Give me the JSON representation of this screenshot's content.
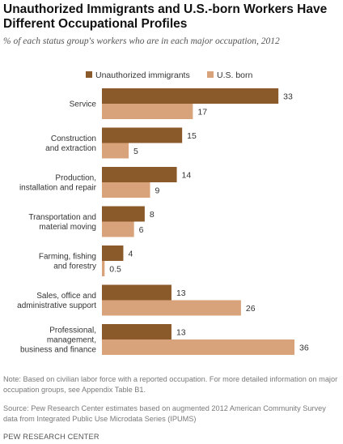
{
  "header": {
    "title": "Unauthorized Immigrants and U.S.-born Workers Have Different Occupational Profiles",
    "subtitle": "% of each status group's workers who are in each major occupation, 2012"
  },
  "footer": {
    "note": "Note: Based on civilian labor force with a reported occupation. For more detailed information on major occupation groups, see Appendix Table B1.",
    "source": "Source: Pew Research Center estimates based on augmented 2012 American Community Survey data from Integrated Public Use Microdata Series (IPUMS)",
    "brand": "PEW RESEARCH CENTER"
  },
  "colors": {
    "unauthorized": "#8b5a2b",
    "us_born": "#d8a27a",
    "text": "#333333"
  },
  "chart_data": {
    "type": "bar",
    "orientation": "horizontal",
    "grouped": true,
    "categories": [
      [
        "Service"
      ],
      [
        "Construction",
        "and extraction"
      ],
      [
        "Production,",
        "installation and repair"
      ],
      [
        "Transportation and",
        "material moving"
      ],
      [
        "Farming, fishing",
        "and forestry"
      ],
      [
        "Sales, office and",
        "administrative support"
      ],
      [
        "Professional,",
        "management,",
        "business and finance"
      ]
    ],
    "series": [
      {
        "name": "Unauthorized immigrants",
        "values": [
          33,
          15,
          14,
          8,
          4,
          13,
          13
        ],
        "labels": [
          "33",
          "15",
          "14",
          "8",
          "4",
          "13",
          "13"
        ]
      },
      {
        "name": "U.S. born",
        "values": [
          17,
          5,
          9,
          6,
          0.5,
          26,
          36
        ],
        "labels": [
          "17",
          "5",
          "9",
          "6",
          "0.5",
          "26",
          "36"
        ]
      }
    ],
    "xlim": [
      0,
      36
    ],
    "legend": "top",
    "grid": false
  }
}
